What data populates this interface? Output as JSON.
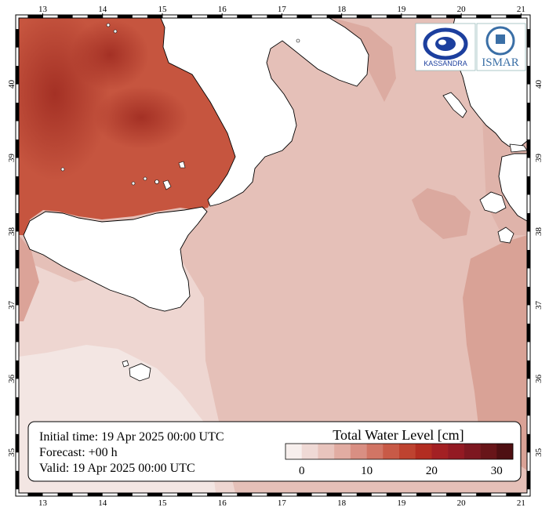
{
  "map": {
    "lon_ticks": [
      "13",
      "14",
      "15",
      "16",
      "17",
      "18",
      "19",
      "20",
      "21"
    ],
    "lat_ticks": [
      "35",
      "36",
      "37",
      "38",
      "39",
      "40"
    ],
    "lon_range": [
      12.6,
      21.1
    ],
    "lat_range": [
      34.45,
      40.9
    ],
    "sea_color": "#e5c0b8",
    "land_color": "#ffffff"
  },
  "info": {
    "initial_time": "Initial time: 19 Apr 2025 00:00 UTC",
    "forecast": "Forecast: +00 h",
    "valid": "Valid: 19 Apr 2025 00:00 UTC"
  },
  "legend": {
    "title": "Total Water Level [cm]",
    "tick_labels": [
      "0",
      "10",
      "20",
      "30"
    ],
    "tick_values": [
      0,
      10,
      20,
      30
    ],
    "range": [
      -2.5,
      32.5
    ],
    "colors": [
      "#f7efed",
      "#efd9d5",
      "#e8c4bd",
      "#e1aca2",
      "#d98f83",
      "#d17565",
      "#c85a47",
      "#be4330",
      "#b22d21",
      "#a32023",
      "#931a23",
      "#7d1720",
      "#681519",
      "#4e0f12"
    ]
  },
  "logos": {
    "left_text": "KASSANDRA",
    "right_text": "ISMAR",
    "left_icon": "eye-swirl-icon",
    "right_icon": "cnr-ismar-icon"
  }
}
